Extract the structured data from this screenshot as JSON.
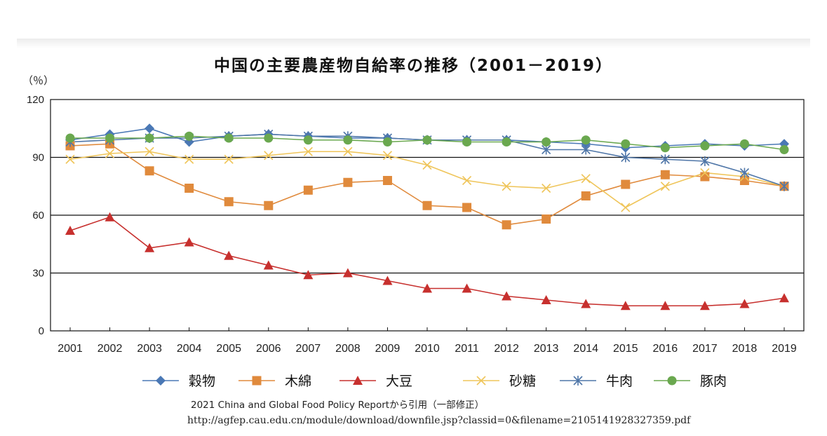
{
  "title": "中国の主要農産物自給率の推移（2001－2019）",
  "unit_label": "（％）",
  "source_note": "2021 China and Global Food Policy Reportから引用（一部修正）",
  "source_url": "http://agfep.cau.edu.cn/module/download/downfile.jsp?classid=0&filename=2105141928327359.pdf",
  "chart_data": {
    "type": "line",
    "title": "中国の主要農産物自給率の推移（2001－2019）",
    "ylabel": "（％）",
    "xlabel": "",
    "ylim": [
      0,
      120
    ],
    "yticks": [
      0,
      30,
      60,
      90,
      120
    ],
    "grid": "horizontal",
    "legend_position": "bottom",
    "x": [
      "2001",
      "2002",
      "2003",
      "2004",
      "2005",
      "2006",
      "2007",
      "2008",
      "2009",
      "2010",
      "2011",
      "2012",
      "2013",
      "2014",
      "2015",
      "2016",
      "2017",
      "2018",
      "2019"
    ],
    "series": [
      {
        "name": "穀物",
        "color": "#4a78b5",
        "marker": "diamond",
        "values": [
          99,
          102,
          105,
          98,
          101,
          102,
          101,
          100,
          100,
          99,
          99,
          99,
          98,
          97,
          95,
          96,
          97,
          96,
          97
        ]
      },
      {
        "name": "木綿",
        "color": "#e08a3c",
        "marker": "square",
        "values": [
          96,
          97,
          83,
          74,
          67,
          65,
          73,
          77,
          78,
          65,
          64,
          55,
          58,
          70,
          76,
          81,
          80,
          78,
          75
        ]
      },
      {
        "name": "大豆",
        "color": "#c7302e",
        "marker": "triangle",
        "values": [
          52,
          59,
          43,
          46,
          39,
          34,
          29,
          30,
          26,
          22,
          22,
          18,
          16,
          14,
          13,
          13,
          13,
          14,
          17
        ]
      },
      {
        "name": "砂糖",
        "color": "#efc55a",
        "marker": "x",
        "values": [
          89,
          92,
          93,
          89,
          89,
          91,
          93,
          93,
          91,
          86,
          78,
          75,
          74,
          79,
          64,
          75,
          82,
          80,
          75
        ]
      },
      {
        "name": "牛肉",
        "color": "#4f76a8",
        "marker": "star",
        "values": [
          98,
          99,
          100,
          100,
          101,
          102,
          101,
          101,
          100,
          99,
          99,
          99,
          94,
          94,
          90,
          89,
          88,
          82,
          75
        ]
      },
      {
        "name": "豚肉",
        "color": "#6aa84f",
        "marker": "circle",
        "values": [
          100,
          100,
          100,
          101,
          100,
          100,
          99,
          99,
          98,
          99,
          98,
          98,
          98,
          99,
          97,
          95,
          96,
          97,
          94
        ]
      }
    ]
  }
}
